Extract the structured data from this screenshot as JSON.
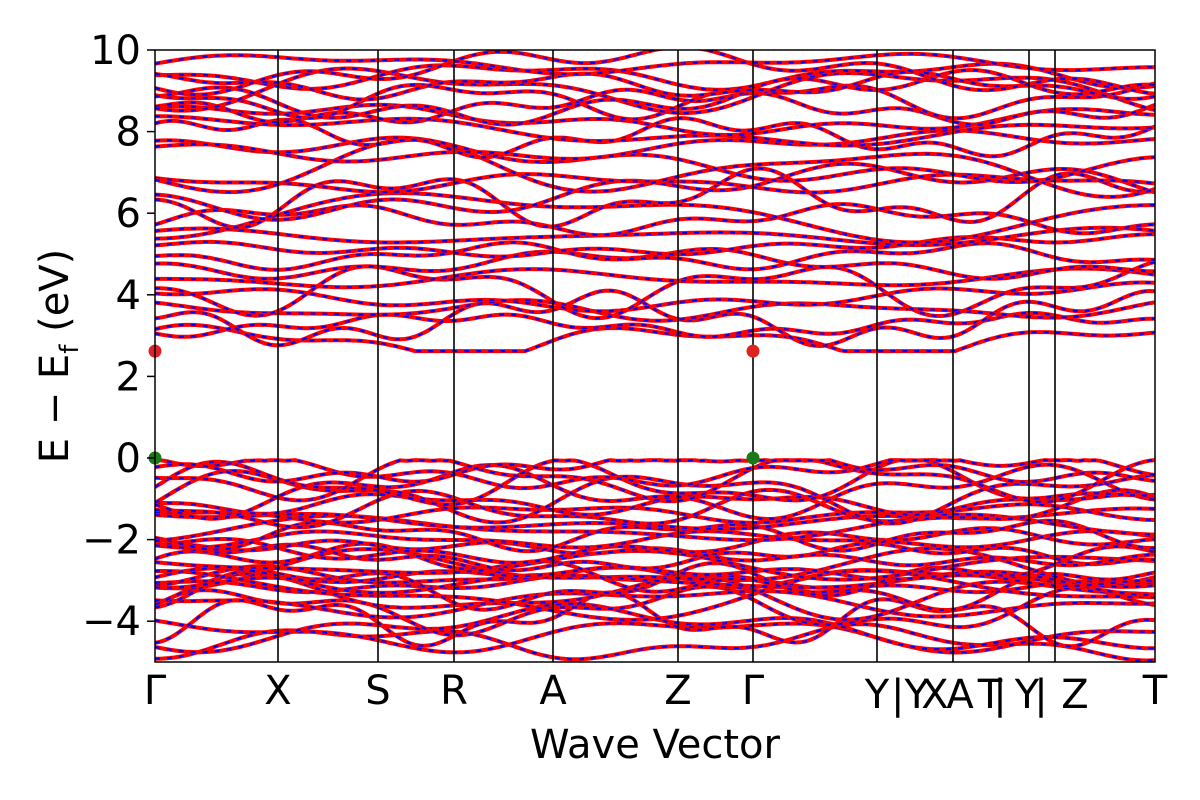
{
  "chart_data": {
    "type": "line",
    "xlabel": "Wave Vector",
    "ylabel_main": "E − E",
    "ylabel_sub": "f",
    "ylabel_unit": " (eV)",
    "ylim": [
      -5,
      10
    ],
    "yticks": [
      {
        "value": 10,
        "label": "10"
      },
      {
        "value": 8,
        "label": "8"
      },
      {
        "value": 6,
        "label": "6"
      },
      {
        "value": 4,
        "label": "4"
      },
      {
        "value": 2,
        "label": "2"
      },
      {
        "value": 0,
        "label": "0"
      },
      {
        "value": -2,
        "label": "−2"
      },
      {
        "value": -4,
        "label": "−4"
      }
    ],
    "xlim": [
      0,
      10
    ],
    "kpoints": [
      {
        "pos": 0.0,
        "label": "Γ"
      },
      {
        "pos": 1.23,
        "label": "X"
      },
      {
        "pos": 2.23,
        "label": "S"
      },
      {
        "pos": 2.99,
        "label": "R"
      },
      {
        "pos": 3.98,
        "label": "A"
      },
      {
        "pos": 5.23,
        "label": "Z"
      },
      {
        "pos": 5.98,
        "label": "Γ"
      },
      {
        "pos": 7.22,
        "label": "Y|Y"
      },
      {
        "pos": 7.98,
        "label": "X"
      },
      {
        "pos": 8.74,
        "label": "A"
      },
      {
        "pos": 10.0,
        "label": "T"
      }
    ],
    "kpoint_labels_overlap": [
      {
        "pos": 7.22,
        "label": "Y"
      },
      {
        "pos": 7.55,
        "label": "|Y"
      },
      {
        "pos": 7.8,
        "label": "X"
      },
      {
        "pos": 8.05,
        "label": "A"
      },
      {
        "pos": 8.35,
        "label": "T"
      },
      {
        "pos": 8.45,
        "label": "|"
      },
      {
        "pos": 8.72,
        "label": "Y"
      },
      {
        "pos": 8.86,
        "label": "|"
      },
      {
        "pos": 9.2,
        "label": "Z"
      }
    ],
    "series": [
      {
        "color": "#ff0000",
        "style": "solid"
      },
      {
        "color": "#0000ff",
        "style": "dashed"
      }
    ],
    "valence_band_max": 0.0,
    "conduction_band_min": 2.62,
    "markers": [
      {
        "x": 0.0,
        "y": 2.62,
        "color": "#dd2222"
      },
      {
        "x": 5.98,
        "y": 2.62,
        "color": "#dd2222"
      },
      {
        "x": 0.0,
        "y": 0.0,
        "color": "#1a7a1a"
      },
      {
        "x": 5.98,
        "y": 0.0,
        "color": "#1a7a1a"
      }
    ]
  }
}
